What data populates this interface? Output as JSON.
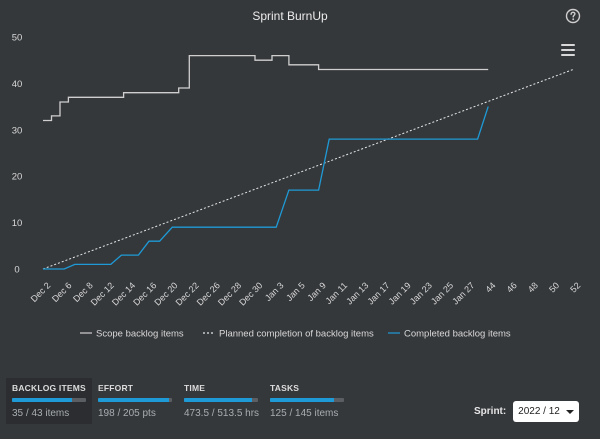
{
  "chart_data": {
    "type": "line",
    "title": "Sprint BurnUp",
    "x": [
      "Dec 2",
      "Dec 6",
      "Dec 8",
      "Dec 12",
      "Dec 14",
      "Dec 16",
      "Dec 20",
      "Dec 22",
      "Dec 26",
      "Dec 28",
      "Dec 30",
      "Jan 3",
      "Jan 5",
      "Jan 9",
      "Jan 11",
      "Jan 13",
      "Jan 17",
      "Jan 19",
      "Jan 23",
      "Jan 25",
      "Jan 27",
      "44",
      "46",
      "48",
      "50",
      "52"
    ],
    "yticks": [
      0,
      10,
      20,
      30,
      40,
      50
    ],
    "ylim": [
      0,
      50
    ],
    "grid": false,
    "legend_position": "bottom",
    "series": [
      {
        "name": "Scope backlog items",
        "style": "solid",
        "color": "#cfcfcf",
        "points": [
          [
            0,
            32
          ],
          [
            0.4,
            32
          ],
          [
            0.4,
            33
          ],
          [
            0.8,
            33
          ],
          [
            0.8,
            36
          ],
          [
            1.2,
            36
          ],
          [
            1.2,
            37
          ],
          [
            3.8,
            37
          ],
          [
            3.8,
            38
          ],
          [
            6.4,
            38
          ],
          [
            6.4,
            39
          ],
          [
            6.9,
            39
          ],
          [
            6.9,
            46
          ],
          [
            10,
            46
          ],
          [
            10,
            45
          ],
          [
            10.8,
            45
          ],
          [
            10.8,
            46
          ],
          [
            11.6,
            46
          ],
          [
            11.6,
            44
          ],
          [
            13,
            44
          ],
          [
            13,
            43
          ],
          [
            21,
            43
          ]
        ]
      },
      {
        "name": "Planned completion of backlog items",
        "style": "dashed",
        "color": "#e6e6e6",
        "points": [
          [
            0,
            0
          ],
          [
            25,
            43
          ]
        ]
      },
      {
        "name": "Completed backlog items",
        "style": "solid",
        "color": "#1e9ad6",
        "points": [
          [
            0,
            0
          ],
          [
            1,
            0
          ],
          [
            1.5,
            1
          ],
          [
            3.2,
            1
          ],
          [
            3.7,
            3
          ],
          [
            4.5,
            3
          ],
          [
            5,
            6
          ],
          [
            5.5,
            6
          ],
          [
            6.1,
            9
          ],
          [
            11,
            9
          ],
          [
            11.6,
            17
          ],
          [
            13,
            17
          ],
          [
            13.5,
            28
          ],
          [
            20.5,
            28
          ],
          [
            21,
            35
          ]
        ]
      }
    ]
  },
  "stats": [
    {
      "label": "BACKLOG ITEMS",
      "value": "35 / 43 items",
      "progress": 0.814,
      "active": true
    },
    {
      "label": "EFFORT",
      "value": "198 / 205 pts",
      "progress": 0.966,
      "active": false
    },
    {
      "label": "TIME",
      "value": "473.5 / 513.5 hrs",
      "progress": 0.922,
      "active": false
    },
    {
      "label": "TASKS",
      "value": "125 / 145 items",
      "progress": 0.862,
      "active": false
    }
  ],
  "sprint": {
    "label": "Sprint:",
    "value": "2022 / 12"
  },
  "icons": {
    "help": "question-circle-icon",
    "menu": "hamburger-menu-icon"
  },
  "colors": {
    "accent": "#1e9ad6",
    "background": "#35383b"
  }
}
